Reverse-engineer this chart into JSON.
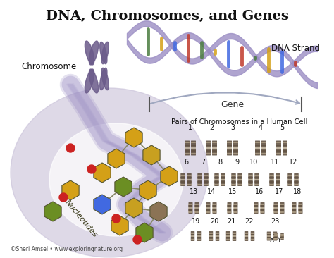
{
  "title": "DNA, Chromosomes, and Genes",
  "title_fontsize": 14,
  "title_fontweight": "bold",
  "background_color": "#ffffff",
  "labels": {
    "chromosome": "Chromosome",
    "dna_strand": "DNA Strand",
    "gene": "Gene",
    "nucleotides": "Nucleotides",
    "pairs_title": "Pairs of Chromosomes in a Human Cell",
    "copyright": "©Sheri Amsel • www.exploringnature.org"
  },
  "chromosome_numbers_row1": [
    "1",
    "2",
    "3",
    "4",
    "5"
  ],
  "chromosome_numbers_row2": [
    "6",
    "7",
    "8",
    "9",
    "10",
    "11",
    "12"
  ],
  "chromosome_numbers_row3": [
    "13",
    "14",
    "15",
    "16",
    "17",
    "18"
  ],
  "chromosome_numbers_row4": [
    "19",
    "20",
    "21",
    "22",
    "23"
  ],
  "xy_labels": [
    "X",
    "Y"
  ],
  "dna_helix_color": "#8b7fc7",
  "chromosome_color": "#6b5b8a",
  "nucleotide_colors": [
    "#d4a017",
    "#8b7355",
    "#6b8e23",
    "#4169e1",
    "#c0392b"
  ],
  "cell_bg_color": "#d8d4e8",
  "helix_ribbon_color": "#9b8ec4",
  "gene_arrow_color": "#c8c0d8",
  "chr_img_color": "#5a4a3a",
  "fig_width": 4.74,
  "fig_height": 3.66,
  "dpi": 100
}
